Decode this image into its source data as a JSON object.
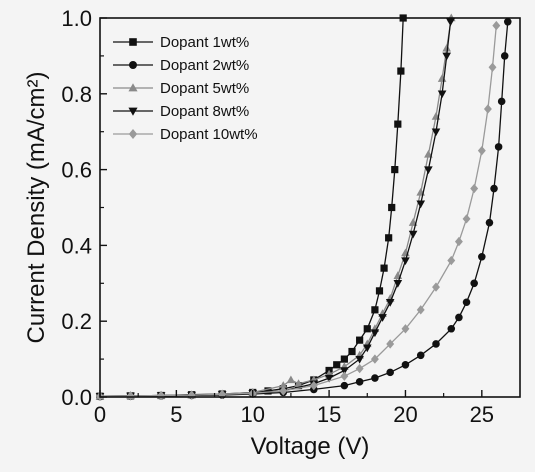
{
  "chart_data": {
    "type": "scatter",
    "title": "",
    "xlabel": "Voltage (V)",
    "ylabel": "Current Density (mA/cm²)",
    "xlim": [
      0,
      27.5
    ],
    "ylim": [
      0,
      1.0
    ],
    "xticks": [
      "0",
      "5",
      "10",
      "15",
      "20",
      "25"
    ],
    "yticks": [
      "0.0",
      "0.2",
      "0.4",
      "0.6",
      "0.8",
      "1.0"
    ],
    "legend_position": "top-left",
    "grid": false,
    "series": [
      {
        "name": "Dopant 1wt%",
        "marker": "square",
        "color": "#111111",
        "points": [
          [
            0,
            0.002
          ],
          [
            2,
            0.003
          ],
          [
            4,
            0.004
          ],
          [
            6,
            0.006
          ],
          [
            8,
            0.008
          ],
          [
            10,
            0.012
          ],
          [
            11,
            0.016
          ],
          [
            12,
            0.022
          ],
          [
            13,
            0.03
          ],
          [
            14,
            0.045
          ],
          [
            15,
            0.07
          ],
          [
            15.5,
            0.085
          ],
          [
            16,
            0.1
          ],
          [
            16.5,
            0.12
          ],
          [
            17,
            0.15
          ],
          [
            17.5,
            0.18
          ],
          [
            18,
            0.23
          ],
          [
            18.3,
            0.28
          ],
          [
            18.6,
            0.34
          ],
          [
            18.9,
            0.42
          ],
          [
            19.1,
            0.5
          ],
          [
            19.3,
            0.6
          ],
          [
            19.5,
            0.72
          ],
          [
            19.7,
            0.86
          ],
          [
            19.85,
            1.0
          ]
        ]
      },
      {
        "name": "Dopant 2wt%",
        "marker": "circle",
        "color": "#111111",
        "points": [
          [
            0,
            0.001
          ],
          [
            2,
            0.002
          ],
          [
            4,
            0.003
          ],
          [
            6,
            0.004
          ],
          [
            8,
            0.005
          ],
          [
            10,
            0.008
          ],
          [
            12,
            0.012
          ],
          [
            14,
            0.02
          ],
          [
            16,
            0.03
          ],
          [
            17,
            0.04
          ],
          [
            18,
            0.05
          ],
          [
            19,
            0.065
          ],
          [
            20,
            0.085
          ],
          [
            21,
            0.11
          ],
          [
            22,
            0.14
          ],
          [
            23,
            0.18
          ],
          [
            23.5,
            0.21
          ],
          [
            24,
            0.25
          ],
          [
            24.5,
            0.3
          ],
          [
            25,
            0.37
          ],
          [
            25.5,
            0.46
          ],
          [
            25.8,
            0.55
          ],
          [
            26.1,
            0.66
          ],
          [
            26.3,
            0.78
          ],
          [
            26.5,
            0.9
          ],
          [
            26.7,
            0.99
          ]
        ]
      },
      {
        "name": "Dopant 5wt%",
        "marker": "triangle-up",
        "color": "#8a8a8a",
        "points": [
          [
            0,
            0.002
          ],
          [
            2,
            0.003
          ],
          [
            4,
            0.004
          ],
          [
            6,
            0.005
          ],
          [
            8,
            0.008
          ],
          [
            10,
            0.012
          ],
          [
            12,
            0.03
          ],
          [
            12.5,
            0.045
          ],
          [
            13,
            0.035
          ],
          [
            14,
            0.045
          ],
          [
            15,
            0.06
          ],
          [
            16,
            0.08
          ],
          [
            17,
            0.11
          ],
          [
            17.5,
            0.14
          ],
          [
            18,
            0.18
          ],
          [
            18.5,
            0.22
          ],
          [
            19,
            0.26
          ],
          [
            19.5,
            0.32
          ],
          [
            20,
            0.38
          ],
          [
            20.5,
            0.46
          ],
          [
            21,
            0.54
          ],
          [
            21.5,
            0.64
          ],
          [
            22,
            0.74
          ],
          [
            22.4,
            0.84
          ],
          [
            22.7,
            0.92
          ],
          [
            23,
            1.0
          ]
        ]
      },
      {
        "name": "Dopant 8wt%",
        "marker": "triangle-down",
        "color": "#111111",
        "points": [
          [
            0,
            0.002
          ],
          [
            2,
            0.003
          ],
          [
            4,
            0.004
          ],
          [
            6,
            0.005
          ],
          [
            8,
            0.007
          ],
          [
            10,
            0.01
          ],
          [
            12,
            0.016
          ],
          [
            14,
            0.035
          ],
          [
            15,
            0.05
          ],
          [
            16,
            0.07
          ],
          [
            17,
            0.1
          ],
          [
            17.5,
            0.13
          ],
          [
            18,
            0.17
          ],
          [
            18.5,
            0.21
          ],
          [
            19,
            0.25
          ],
          [
            19.5,
            0.3
          ],
          [
            20,
            0.36
          ],
          [
            20.5,
            0.43
          ],
          [
            21,
            0.51
          ],
          [
            21.5,
            0.6
          ],
          [
            22,
            0.7
          ],
          [
            22.4,
            0.8
          ],
          [
            22.7,
            0.9
          ],
          [
            22.95,
            0.99
          ]
        ]
      },
      {
        "name": "Dopant 10wt%",
        "marker": "diamond",
        "color": "#9a9a9a",
        "points": [
          [
            0,
            0.002
          ],
          [
            2,
            0.003
          ],
          [
            4,
            0.004
          ],
          [
            6,
            0.005
          ],
          [
            8,
            0.007
          ],
          [
            10,
            0.01
          ],
          [
            12,
            0.016
          ],
          [
            14,
            0.03
          ],
          [
            16,
            0.055
          ],
          [
            17,
            0.075
          ],
          [
            18,
            0.1
          ],
          [
            19,
            0.14
          ],
          [
            20,
            0.18
          ],
          [
            21,
            0.23
          ],
          [
            22,
            0.29
          ],
          [
            23,
            0.36
          ],
          [
            23.5,
            0.41
          ],
          [
            24,
            0.47
          ],
          [
            24.5,
            0.55
          ],
          [
            25,
            0.65
          ],
          [
            25.4,
            0.76
          ],
          [
            25.7,
            0.87
          ],
          [
            25.95,
            0.98
          ]
        ]
      }
    ]
  }
}
